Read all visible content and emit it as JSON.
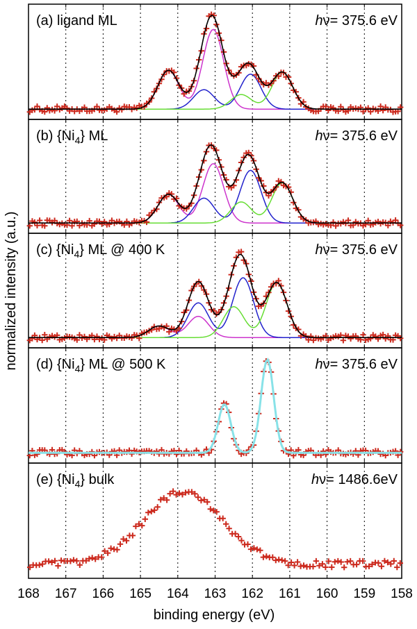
{
  "chart_data": {
    "type": "line",
    "xlabel": "binding energy (eV)",
    "ylabel": "normalized intensity (a.u.)",
    "xlim": [
      168,
      158
    ],
    "x_reversed": true,
    "x_ticks": [
      168,
      167,
      166,
      165,
      164,
      163,
      162,
      161,
      160,
      159,
      158
    ],
    "grid": "vertical dotted at every 1 eV",
    "colors": {
      "data": "#cc2a1e",
      "fit": "#000000",
      "component_magenta": "#cc33cc",
      "component_blue": "#2222cc",
      "component_green": "#66dd33",
      "fit_cyan": "#88e2e8"
    },
    "panels": [
      {
        "label": "(a) ligand ML",
        "photon_energy": "375.6 eV",
        "baseline": 0.02,
        "components": [
          {
            "color_key": "component_magenta",
            "peaks": [
              {
                "center": 164.25,
                "amp": 0.4,
                "width": 0.28
              },
              {
                "center": 163.05,
                "amp": 0.82,
                "width": 0.28
              }
            ]
          },
          {
            "color_key": "component_blue",
            "peaks": [
              {
                "center": 163.3,
                "amp": 0.2,
                "width": 0.28
              },
              {
                "center": 162.05,
                "amp": 0.36,
                "width": 0.28
              }
            ]
          },
          {
            "color_key": "component_green",
            "peaks": [
              {
                "center": 162.3,
                "amp": 0.15,
                "width": 0.28
              },
              {
                "center": 161.2,
                "amp": 0.38,
                "width": 0.28
              }
            ]
          }
        ],
        "data_points": 150
      },
      {
        "label": "(b) {Ni4} ML",
        "photon_energy": "375.6 eV",
        "baseline": 0.02,
        "components": [
          {
            "color_key": "component_magenta",
            "peaks": [
              {
                "center": 164.25,
                "amp": 0.3,
                "width": 0.28
              },
              {
                "center": 163.05,
                "amp": 0.62,
                "width": 0.28
              }
            ]
          },
          {
            "color_key": "component_blue",
            "peaks": [
              {
                "center": 163.3,
                "amp": 0.26,
                "width": 0.28
              },
              {
                "center": 162.05,
                "amp": 0.55,
                "width": 0.28
              }
            ]
          },
          {
            "color_key": "component_green",
            "peaks": [
              {
                "center": 162.3,
                "amp": 0.22,
                "width": 0.28
              },
              {
                "center": 161.2,
                "amp": 0.42,
                "width": 0.28
              }
            ]
          }
        ],
        "data_points": 150
      },
      {
        "label": "(c) {Ni4} ML @ 400 K",
        "photon_energy": "375.6 eV",
        "baseline": 0.02,
        "components": [
          {
            "color_key": "component_magenta",
            "peaks": [
              {
                "center": 164.5,
                "amp": 0.12,
                "width": 0.28
              },
              {
                "center": 163.45,
                "amp": 0.22,
                "width": 0.28
              }
            ]
          },
          {
            "color_key": "component_blue",
            "peaks": [
              {
                "center": 163.45,
                "amp": 0.36,
                "width": 0.28
              },
              {
                "center": 162.25,
                "amp": 0.62,
                "width": 0.28
              }
            ]
          },
          {
            "color_key": "component_green",
            "peaks": [
              {
                "center": 162.5,
                "amp": 0.32,
                "width": 0.28
              },
              {
                "center": 161.35,
                "amp": 0.57,
                "width": 0.28
              }
            ]
          }
        ],
        "data_points": 150
      },
      {
        "label": "(d) {Ni4} ML @ 500 K",
        "photon_energy": "375.6 eV",
        "baseline": 0.02,
        "fit_color_key": "fit_cyan",
        "components": [
          {
            "color_key": "fit_cyan",
            "peaks": [
              {
                "center": 162.75,
                "amp": 0.5,
                "width": 0.17
              },
              {
                "center": 161.6,
                "amp": 0.96,
                "width": 0.17
              }
            ]
          }
        ],
        "data_points": 150
      },
      {
        "label": "(e) {Ni4} bulk",
        "photon_energy": "1486.6eV",
        "photon_energy_nospace": true,
        "baseline": 0.06,
        "fit_color_key": null,
        "components": [
          {
            "color_key": null,
            "peaks": [
              {
                "center": 163.85,
                "amp": 0.75,
                "width": 1.05
              }
            ]
          }
        ],
        "data_points": 120
      }
    ]
  }
}
